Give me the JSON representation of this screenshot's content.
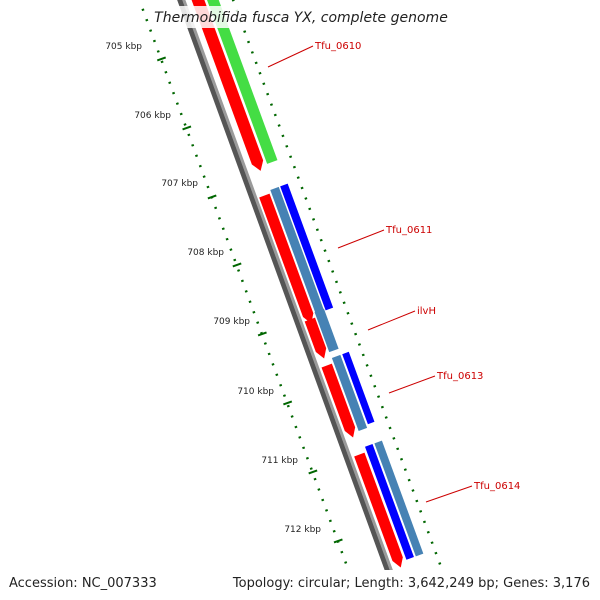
{
  "title": "Thermobifida fusca YX, complete genome",
  "accession_label": "Accession: NC_007333",
  "topology_label": "Topology: circular; Length: 3,642,249 bp; Genes: 3,176",
  "kbp_labels": [
    "705 kbp",
    "706 kbp",
    "707 kbp",
    "708 kbp",
    "709 kbp",
    "710 kbp",
    "711 kbp",
    "712 kbp"
  ],
  "genes": [
    "Tfu_0610",
    "Tfu_0611",
    "ilvH",
    "Tfu_0613",
    "Tfu_0614"
  ],
  "colors": {
    "cds_red": "#ff0000",
    "cds_green": "#44dd44",
    "cds_blue": "#0000ff",
    "cds_steelblue": "#4682b4",
    "backbone": "#808080",
    "ticks": "#006600",
    "gene_label": "#cc0000"
  }
}
